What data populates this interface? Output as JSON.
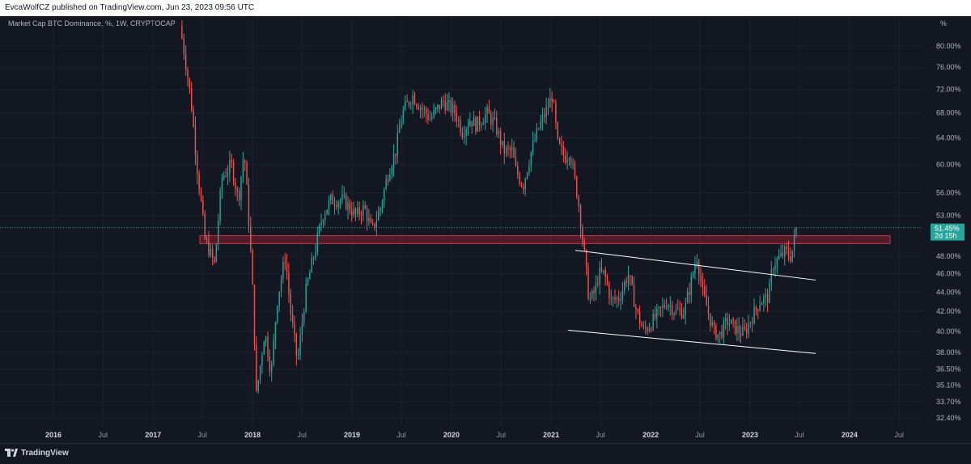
{
  "header": {
    "published": "EvcaWolfCZ published on TradingView.com, Jun 23, 2023 09:56 UTC"
  },
  "footer": {
    "brand": "TradingView"
  },
  "chart_data": {
    "type": "candlestick",
    "title": "Market Cap BTC Dominance, %, 1W, CRYPTOCAP",
    "y_unit": "%",
    "y_scale": "log",
    "y_ticks": [
      "80.00%",
      "76.00%",
      "72.00%",
      "68.00%",
      "64.00%",
      "60.00%",
      "56.00%",
      "53.00%",
      "48.00%",
      "46.00%",
      "44.00%",
      "42.00%",
      "40.00%",
      "38.00%",
      "36.50%",
      "35.10%",
      "33.70%",
      "32.40%"
    ],
    "y_tick_values": [
      80,
      76,
      72,
      68,
      64,
      60,
      56,
      53,
      48,
      46,
      44,
      42,
      40,
      38,
      36.5,
      35.1,
      33.7,
      32.4
    ],
    "x_ticks": [
      "2016",
      "Jul",
      "2017",
      "Jul",
      "2018",
      "Jul",
      "2019",
      "Jul",
      "2020",
      "Jul",
      "2021",
      "Jul",
      "2022",
      "Jul",
      "2023",
      "Jul",
      "2024",
      "Jul"
    ],
    "x_tick_dates": [
      "2016-01",
      "2016-07",
      "2017-01",
      "2017-07",
      "2018-01",
      "2018-07",
      "2019-01",
      "2019-07",
      "2020-01",
      "2020-07",
      "2021-01",
      "2021-07",
      "2022-01",
      "2022-07",
      "2023-01",
      "2023-07",
      "2024-01",
      "2024-07"
    ],
    "last_price_label": "51.45%",
    "countdown_label": "2d 15h",
    "last_price": 51.45,
    "colors": {
      "up": "#26a69a",
      "down": "#ef5350",
      "zone": "#8b1f2c",
      "line": "#ffffff",
      "background": "#131722"
    },
    "anchors": [
      [
        "2017-04-10",
        84
      ],
      [
        "2017-05-20",
        70
      ],
      [
        "2017-06-10",
        60
      ],
      [
        "2017-07-10",
        50
      ],
      [
        "2017-08-15",
        47
      ],
      [
        "2017-09-10",
        58
      ],
      [
        "2017-10-15",
        60
      ],
      [
        "2017-11-10",
        55
      ],
      [
        "2017-12-01",
        62
      ],
      [
        "2017-12-31",
        45
      ],
      [
        "2018-01-15",
        34.2
      ],
      [
        "2018-02-15",
        40
      ],
      [
        "2018-03-10",
        36
      ],
      [
        "2018-04-01",
        43
      ],
      [
        "2018-05-01",
        48
      ],
      [
        "2018-05-20",
        42
      ],
      [
        "2018-06-15",
        37
      ],
      [
        "2018-07-15",
        44
      ],
      [
        "2018-08-20",
        49
      ],
      [
        "2018-09-15",
        53
      ],
      [
        "2018-10-15",
        55
      ],
      [
        "2018-12-01",
        55
      ],
      [
        "2019-01-15",
        53
      ],
      [
        "2019-02-15",
        54
      ],
      [
        "2019-03-15",
        51
      ],
      [
        "2019-04-15",
        54
      ],
      [
        "2019-05-15",
        59
      ],
      [
        "2019-06-10",
        62
      ],
      [
        "2019-07-05",
        68
      ],
      [
        "2019-08-10",
        71
      ],
      [
        "2019-09-10",
        69
      ],
      [
        "2019-10-15",
        67
      ],
      [
        "2019-12-01",
        70
      ],
      [
        "2020-01-15",
        68
      ],
      [
        "2020-02-10",
        65
      ],
      [
        "2020-03-10",
        67
      ],
      [
        "2020-04-01",
        66
      ],
      [
        "2020-05-10",
        68
      ],
      [
        "2020-06-10",
        66
      ],
      [
        "2020-07-10",
        62
      ],
      [
        "2020-08-10",
        62
      ],
      [
        "2020-08-25",
        59
      ],
      [
        "2020-09-20",
        57
      ],
      [
        "2020-10-20",
        62
      ],
      [
        "2020-11-20",
        66
      ],
      [
        "2020-12-20",
        69
      ],
      [
        "2021-01-05",
        71
      ],
      [
        "2021-01-25",
        63
      ],
      [
        "2021-02-20",
        61
      ],
      [
        "2021-03-10",
        62
      ],
      [
        "2021-04-10",
        55
      ],
      [
        "2021-05-20",
        43
      ],
      [
        "2021-06-10",
        44
      ],
      [
        "2021-06-25",
        46
      ],
      [
        "2021-07-15",
        46
      ],
      [
        "2021-08-10",
        43
      ],
      [
        "2021-09-10",
        43.5
      ],
      [
        "2021-10-10",
        46
      ],
      [
        "2021-11-10",
        42
      ],
      [
        "2021-12-05",
        40
      ],
      [
        "2021-12-25",
        40.5
      ],
      [
        "2022-02-05",
        42
      ],
      [
        "2022-03-01",
        43
      ],
      [
        "2022-04-01",
        42
      ],
      [
        "2022-05-05",
        42
      ],
      [
        "2022-06-05",
        46
      ],
      [
        "2022-06-20",
        48
      ],
      [
        "2022-07-10",
        44
      ],
      [
        "2022-08-20",
        40
      ],
      [
        "2022-09-10",
        39.6
      ],
      [
        "2022-10-10",
        41
      ],
      [
        "2022-11-20",
        40
      ],
      [
        "2022-12-10",
        39.8
      ],
      [
        "2023-01-10",
        41.5
      ],
      [
        "2023-02-05",
        43
      ],
      [
        "2023-03-10",
        43.5
      ],
      [
        "2023-03-25",
        47
      ],
      [
        "2023-04-10",
        47.5
      ],
      [
        "2023-05-10",
        48.5
      ],
      [
        "2023-06-01",
        48
      ],
      [
        "2023-06-20",
        51.45
      ]
    ]
  }
}
